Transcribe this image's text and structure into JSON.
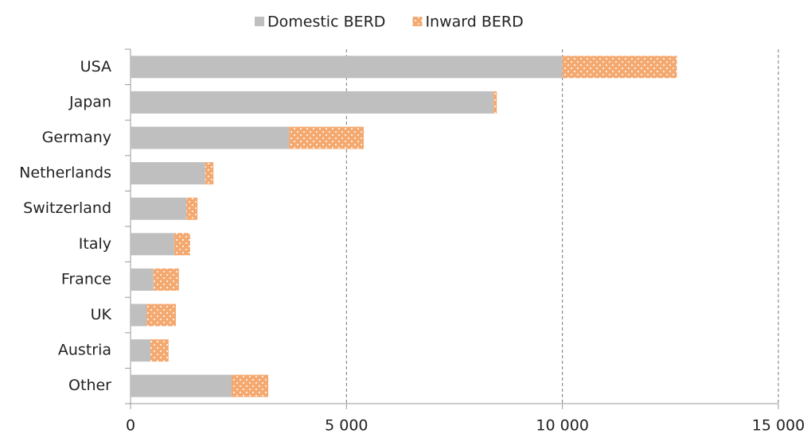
{
  "chart_data": {
    "type": "stacked_barh",
    "categories": [
      "USA",
      "Japan",
      "Germany",
      "Netherlands",
      "Switzerland",
      "Italy",
      "France",
      "UK",
      "Austria",
      "Other"
    ],
    "series": [
      {
        "name": "Domestic BERD",
        "color": "#bfbfbf",
        "values": [
          10000,
          8400,
          3670,
          1730,
          1290,
          1010,
          530,
          370,
          460,
          2340
        ]
      },
      {
        "name": "Inward BERD",
        "color": "#f4a970",
        "pattern": "dots",
        "values": [
          2650,
          80,
          1730,
          190,
          260,
          370,
          590,
          680,
          420,
          850
        ]
      }
    ],
    "xlim": [
      0,
      15000
    ],
    "xticks": [
      0,
      {
        "value": 5000,
        "label": "5 000"
      },
      {
        "value": 10000,
        "label": "10 000"
      },
      {
        "value": 15000,
        "label": "15 000"
      }
    ],
    "grid": true,
    "legend": "top"
  }
}
